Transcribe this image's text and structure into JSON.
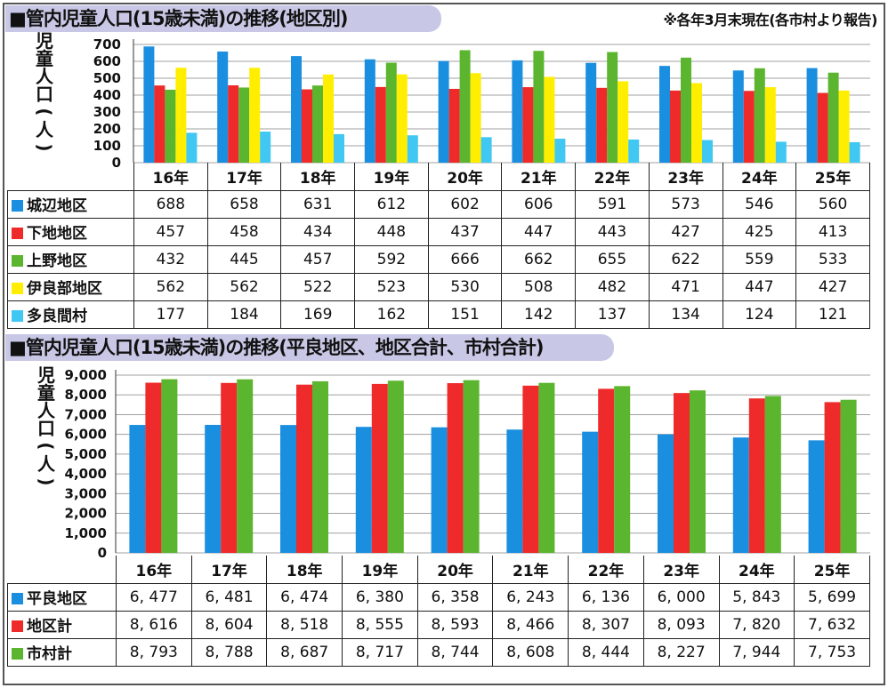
{
  "title1": "■管内児童人口(15歳未満)の推移(地区別)",
  "note1": "※各年3月末現在(各市村より報告)",
  "title2": "■管内児童人口(15歳未満)の推移(平良地区、地区合計、市村合計)",
  "ylabel_chars": [
    "児",
    "童",
    "人",
    "口",
    "(",
    "人",
    ")"
  ],
  "colors": {
    "blue": "#1a8fe0",
    "red": "#ee2a2a",
    "green": "#5cb52f",
    "yellow": "#ffee00",
    "cyan": "#40c8f2"
  },
  "chart_data": [
    {
      "type": "bar",
      "title": "■管内児童人口(15歳未満)の推移(地区別)",
      "ylabel": "児童人口(人)",
      "ylim": [
        0,
        700
      ],
      "yticks": [
        0,
        100,
        200,
        300,
        400,
        500,
        600,
        700
      ],
      "ytick_labels": [
        "0",
        "100",
        "200",
        "300",
        "400",
        "500",
        "600",
        "700"
      ],
      "categories": [
        "16年",
        "17年",
        "18年",
        "19年",
        "20年",
        "21年",
        "22年",
        "23年",
        "24年",
        "25年"
      ],
      "grid": true,
      "series": [
        {
          "name": "城辺地区",
          "color": "#1a8fe0",
          "values": [
            688,
            658,
            631,
            612,
            602,
            606,
            591,
            573,
            546,
            560
          ],
          "labels": [
            "688",
            "658",
            "631",
            "612",
            "602",
            "606",
            "591",
            "573",
            "546",
            "560"
          ]
        },
        {
          "name": "下地地区",
          "color": "#ee2a2a",
          "values": [
            457,
            458,
            434,
            448,
            437,
            447,
            443,
            427,
            425,
            413
          ],
          "labels": [
            "457",
            "458",
            "434",
            "448",
            "437",
            "447",
            "443",
            "427",
            "425",
            "413"
          ]
        },
        {
          "name": "上野地区",
          "color": "#5cb52f",
          "values": [
            432,
            445,
            457,
            592,
            666,
            662,
            655,
            622,
            559,
            533
          ],
          "labels": [
            "432",
            "445",
            "457",
            "592",
            "666",
            "662",
            "655",
            "622",
            "559",
            "533"
          ]
        },
        {
          "name": "伊良部地区",
          "color": "#ffee00",
          "values": [
            562,
            562,
            522,
            523,
            530,
            508,
            482,
            471,
            447,
            427
          ],
          "labels": [
            "562",
            "562",
            "522",
            "523",
            "530",
            "508",
            "482",
            "471",
            "447",
            "427"
          ]
        },
        {
          "name": "多良間村",
          "color": "#40c8f2",
          "values": [
            177,
            184,
            169,
            162,
            151,
            142,
            137,
            134,
            124,
            121
          ],
          "labels": [
            "177",
            "184",
            "169",
            "162",
            "151",
            "142",
            "137",
            "134",
            "124",
            "121"
          ]
        }
      ]
    },
    {
      "type": "bar",
      "title": "■管内児童人口(15歳未満)の推移(平良地区、地区合計、市村合計)",
      "ylabel": "児童人口(人)",
      "ylim": [
        0,
        9000
      ],
      "yticks": [
        0,
        1000,
        2000,
        3000,
        4000,
        5000,
        6000,
        7000,
        8000,
        9000
      ],
      "ytick_labels": [
        "0",
        "1,000",
        "2,000",
        "3,000",
        "4,000",
        "5,000",
        "6,000",
        "7,000",
        "8,000",
        "9,000"
      ],
      "categories": [
        "16年",
        "17年",
        "18年",
        "19年",
        "20年",
        "21年",
        "22年",
        "23年",
        "24年",
        "25年"
      ],
      "grid": true,
      "series": [
        {
          "name": "平良地区",
          "color": "#1a8fe0",
          "values": [
            6477,
            6481,
            6474,
            6380,
            6358,
            6243,
            6136,
            6000,
            5843,
            5699
          ],
          "labels": [
            "6, 477",
            "6, 481",
            "6, 474",
            "6, 380",
            "6, 358",
            "6, 243",
            "6, 136",
            "6, 000",
            "5, 843",
            "5, 699"
          ]
        },
        {
          "name": "地区計",
          "color": "#ee2a2a",
          "values": [
            8616,
            8604,
            8518,
            8555,
            8593,
            8466,
            8307,
            8093,
            7820,
            7632
          ],
          "labels": [
            "8, 616",
            "8, 604",
            "8, 518",
            "8, 555",
            "8, 593",
            "8, 466",
            "8, 307",
            "8, 093",
            "7, 820",
            "7, 632"
          ]
        },
        {
          "name": "市村計",
          "color": "#5cb52f",
          "values": [
            8793,
            8788,
            8687,
            8717,
            8744,
            8608,
            8444,
            8227,
            7944,
            7753
          ],
          "labels": [
            "8, 793",
            "8, 788",
            "8, 687",
            "8, 717",
            "8, 744",
            "8, 608",
            "8, 444",
            "8, 227",
            "7, 944",
            "7, 753"
          ]
        }
      ]
    }
  ]
}
